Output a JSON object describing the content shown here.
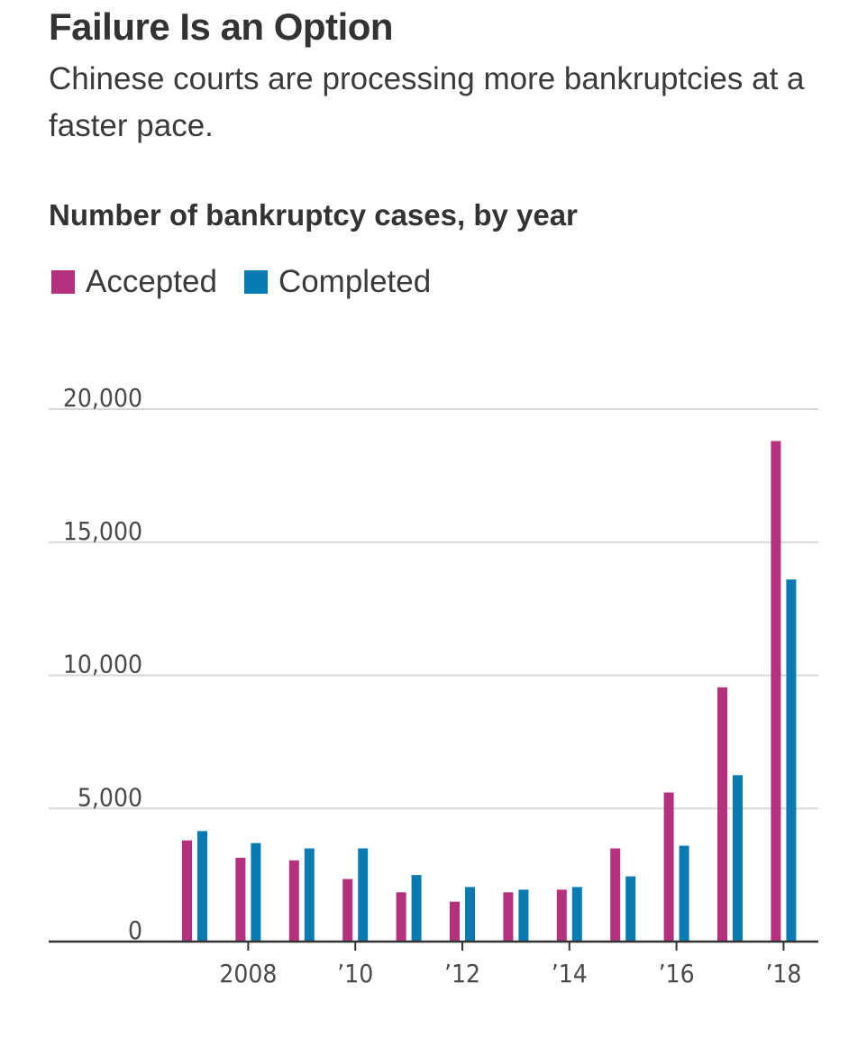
{
  "title": "Failure Is an Option",
  "subtitle": "Chinese courts are processing more bankruptcies at a faster pace.",
  "chart_heading": "Number of bankruptcy cases, by year",
  "legend": [
    {
      "label": "Accepted",
      "color": "#b5317e"
    },
    {
      "label": "Completed",
      "color": "#0a7bb2"
    }
  ],
  "chart_data": {
    "type": "bar",
    "title": "Number of bankruptcy cases, by year",
    "xlabel": "",
    "ylabel": "",
    "categories": [
      2007,
      2008,
      2009,
      2010,
      2011,
      2012,
      2013,
      2014,
      2015,
      2016,
      2017,
      2018
    ],
    "x_tick_labels": [
      {
        "year": 2008,
        "label": "2008"
      },
      {
        "year": 2010,
        "label": "’10"
      },
      {
        "year": 2012,
        "label": "’12"
      },
      {
        "year": 2014,
        "label": "’14"
      },
      {
        "year": 2016,
        "label": "’16"
      },
      {
        "year": 2018,
        "label": "’18"
      }
    ],
    "y_ticks": [
      {
        "value": 0,
        "label": "0"
      },
      {
        "value": 5000,
        "label": "5,000"
      },
      {
        "value": 10000,
        "label": "10,000"
      },
      {
        "value": 15000,
        "label": "15,000"
      },
      {
        "value": 20000,
        "label": "20,000"
      }
    ],
    "ylim": [
      0,
      20000
    ],
    "grid": true,
    "series": [
      {
        "name": "Accepted",
        "color": "#b5317e",
        "values": [
          3800,
          3150,
          3050,
          2350,
          1850,
          1500,
          1850,
          1950,
          3500,
          5600,
          9550,
          18800
        ]
      },
      {
        "name": "Completed",
        "color": "#0a7bb2",
        "values": [
          4150,
          3700,
          3500,
          3500,
          2500,
          2050,
          1950,
          2050,
          2450,
          3600,
          6250,
          13600
        ]
      }
    ]
  }
}
